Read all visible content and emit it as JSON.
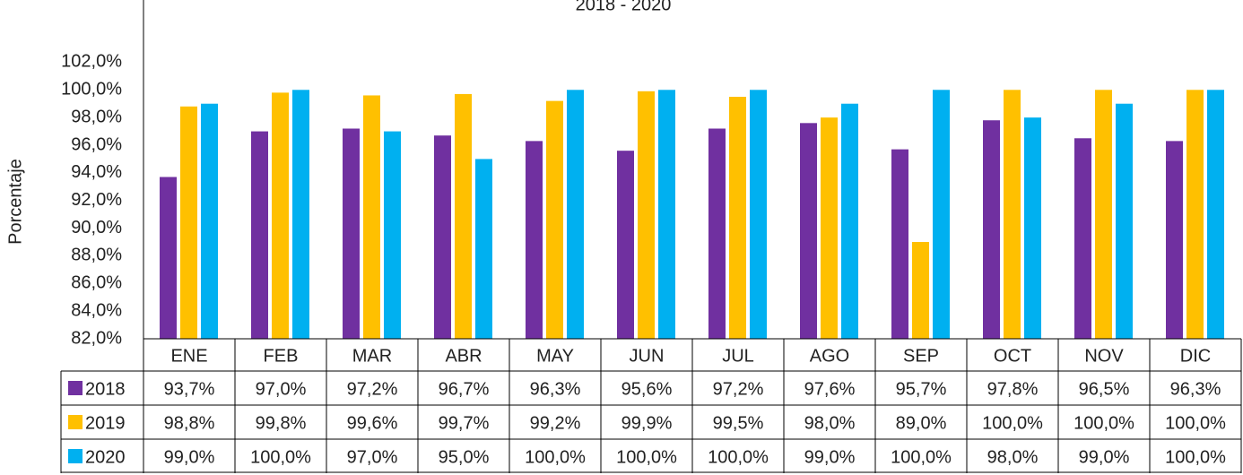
{
  "chart_data": {
    "type": "bar",
    "title": "2018 - 2020",
    "y_label": "Porcentaje",
    "categories": [
      "ENE",
      "FEB",
      "MAR",
      "ABR",
      "MAY",
      "JUN",
      "JUL",
      "AGO",
      "SEP",
      "OCT",
      "NOV",
      "DIC"
    ],
    "series": [
      {
        "name": "2018",
        "color": "#7030a0",
        "values": [
          93.7,
          97.0,
          97.2,
          96.7,
          96.3,
          95.6,
          97.2,
          97.6,
          95.7,
          97.8,
          96.5,
          96.3
        ],
        "value_labels": [
          "93,7%",
          "97,0%",
          "97,2%",
          "96,7%",
          "96,3%",
          "95,6%",
          "97,2%",
          "97,6%",
          "95,7%",
          "97,8%",
          "96,5%",
          "96,3%"
        ]
      },
      {
        "name": "2019",
        "color": "#ffc000",
        "values": [
          98.8,
          99.8,
          99.6,
          99.7,
          99.2,
          99.9,
          99.5,
          98.0,
          89.0,
          100.0,
          100.0,
          100.0
        ],
        "value_labels": [
          "98,8%",
          "99,8%",
          "99,6%",
          "99,7%",
          "99,2%",
          "99,9%",
          "99,5%",
          "98,0%",
          "89,0%",
          "100,0%",
          "100,0%",
          "100,0%"
        ]
      },
      {
        "name": "2020",
        "color": "#00b0f0",
        "values": [
          99.0,
          100.0,
          97.0,
          95.0,
          100.0,
          100.0,
          100.0,
          99.0,
          100.0,
          98.0,
          99.0,
          100.0
        ],
        "value_labels": [
          "99,0%",
          "100,0%",
          "97,0%",
          "95,0%",
          "100,0%",
          "100,0%",
          "100,0%",
          "99,0%",
          "100,0%",
          "98,0%",
          "99,0%",
          "100,0%"
        ]
      }
    ],
    "ylim": [
      82,
      106.5
    ],
    "yticks": [
      {
        "value": 82,
        "label": "82,0%"
      },
      {
        "value": 84,
        "label": "84,0%"
      },
      {
        "value": 86,
        "label": "86,0%"
      },
      {
        "value": 88,
        "label": "88,0%"
      },
      {
        "value": 90,
        "label": "90,0%"
      },
      {
        "value": 92,
        "label": "92,0%"
      },
      {
        "value": 94,
        "label": "94,0%"
      },
      {
        "value": 96,
        "label": "96,0%"
      },
      {
        "value": 98,
        "label": "98,0%"
      },
      {
        "value": 100,
        "label": "100,0%"
      },
      {
        "value": 102,
        "label": "102,0%"
      }
    ],
    "grid": false
  }
}
